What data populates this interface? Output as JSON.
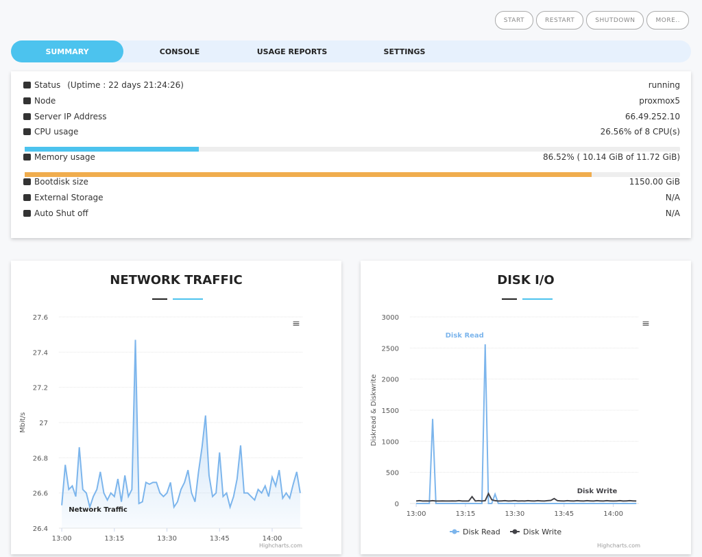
{
  "buttons": [
    "START",
    "RESTART",
    "SHUTDOWN",
    "MORE.."
  ],
  "tabs": [
    "SUMMARY",
    "CONSOLE",
    "USAGE REPORTS",
    "SETTINGS"
  ],
  "status": {
    "rows": [
      {
        "label": "Status",
        "note": "(Uptime : 22 days 21:24:26)",
        "value": "running"
      },
      {
        "label": "Node",
        "value": "proxmox5"
      },
      {
        "label": "Server IP Address",
        "value": "66.49.252.10"
      },
      {
        "label": "CPU usage",
        "value": "26.56% of 8 CPU(s)",
        "percent": 26.56,
        "color": "#4cc3ee"
      },
      {
        "label": "Memory usage",
        "value": "86.52% ( 10.14 GiB of 11.72 GiB)",
        "percent": 86.52,
        "color": "#f0ad4e"
      },
      {
        "label": "Bootdisk size",
        "value": "1150.00 GiB"
      },
      {
        "label": "External Storage",
        "value": "N/A"
      },
      {
        "label": "Auto Shut off",
        "value": "N/A"
      }
    ]
  },
  "chart_data": [
    {
      "type": "area",
      "title": "NETWORK TRAFFIC",
      "y_label": "Mbit/s",
      "credits": "Highcharts.com",
      "grid": true,
      "legend": false,
      "x": [
        0,
        1,
        2,
        3,
        4,
        5,
        6,
        7,
        8,
        9,
        10,
        11,
        12,
        13,
        14,
        15,
        16,
        17,
        18,
        19,
        20,
        21,
        22,
        23,
        24,
        25,
        26,
        27,
        28,
        29,
        30,
        31,
        32,
        33,
        34,
        35,
        36,
        37,
        38,
        39,
        40,
        41,
        42,
        43,
        44,
        45,
        46,
        47,
        48,
        49,
        50,
        51,
        52,
        53,
        54,
        55,
        56,
        57,
        58,
        59,
        60,
        61,
        62,
        63,
        64,
        65,
        66,
        67,
        68
      ],
      "series": [
        {
          "name": "Network Traffic",
          "color": "#7cb5ec",
          "values": [
            26.53,
            26.76,
            26.62,
            26.64,
            26.58,
            26.86,
            26.62,
            26.6,
            26.52,
            26.58,
            26.62,
            26.72,
            26.6,
            26.56,
            26.6,
            26.58,
            26.68,
            26.55,
            26.7,
            26.58,
            26.62,
            27.47,
            26.54,
            26.55,
            26.66,
            26.65,
            26.66,
            26.66,
            26.6,
            26.58,
            26.6,
            26.66,
            26.52,
            26.55,
            26.62,
            26.66,
            26.73,
            26.6,
            26.55,
            26.72,
            26.86,
            27.04,
            26.7,
            26.58,
            26.6,
            26.83,
            26.58,
            26.6,
            26.52,
            26.58,
            26.68,
            26.87,
            26.6,
            26.6,
            26.58,
            26.56,
            26.62,
            26.6,
            26.64,
            26.58,
            26.69,
            26.64,
            26.73,
            26.57,
            26.6,
            26.57,
            26.65,
            26.72,
            26.6
          ]
        }
      ],
      "xlim": [
        -0.8,
        68.6
      ],
      "xticks": [
        {
          "value": 0,
          "label": "13:00"
        },
        {
          "value": 15,
          "label": "13:15"
        },
        {
          "value": 30,
          "label": "13:30"
        },
        {
          "value": 45,
          "label": "13:45"
        },
        {
          "value": 60,
          "label": "14:00"
        }
      ],
      "ylim": [
        26.4,
        27.6
      ],
      "yticks": [
        26.4,
        26.6,
        26.8,
        27,
        27.2,
        27.4,
        27.6
      ]
    },
    {
      "type": "line",
      "title": "DISK I/O",
      "y_label": "Diskread & Diskwrite",
      "credits": "Highcharts.com",
      "grid": true,
      "legend": true,
      "x": [
        0,
        1,
        2,
        3,
        4,
        5,
        6,
        7,
        8,
        9,
        10,
        11,
        12,
        13,
        14,
        15,
        16,
        17,
        18,
        19,
        20,
        21,
        22,
        23,
        24,
        25,
        26,
        27,
        28,
        29,
        30,
        31,
        32,
        33,
        34,
        35,
        36,
        37,
        38,
        39,
        40,
        41,
        42,
        43,
        44,
        45,
        46,
        47,
        48,
        49,
        50,
        51,
        52,
        53,
        54,
        55,
        56,
        57,
        58,
        59,
        60,
        61,
        62,
        63,
        64,
        65,
        66,
        67
      ],
      "series": [
        {
          "name": "Disk Read",
          "color": "#7cb5ec",
          "values": [
            0,
            0,
            0,
            0,
            0,
            1360,
            0,
            0,
            0,
            0,
            0,
            0,
            0,
            0,
            0,
            0,
            0,
            0,
            0,
            0,
            0,
            2560,
            0,
            0,
            150,
            0,
            0,
            0,
            0,
            0,
            0,
            0,
            0,
            0,
            0,
            0,
            0,
            0,
            0,
            0,
            0,
            0,
            0,
            0,
            0,
            0,
            0,
            0,
            0,
            0,
            0,
            0,
            0,
            0,
            0,
            0,
            0,
            0,
            0,
            0,
            0,
            0,
            0,
            0,
            0,
            0,
            0,
            0
          ]
        },
        {
          "name": "Disk Write",
          "color": "#434348",
          "values": [
            40,
            45,
            40,
            42,
            40,
            45,
            40,
            40,
            42,
            40,
            40,
            42,
            40,
            45,
            40,
            40,
            40,
            110,
            40,
            45,
            40,
            45,
            160,
            60,
            45,
            40,
            42,
            45,
            40,
            42,
            45,
            40,
            42,
            40,
            45,
            42,
            40,
            45,
            42,
            40,
            45,
            50,
            80,
            45,
            42,
            40,
            45,
            42,
            40,
            45,
            42,
            40,
            45,
            42,
            40,
            45,
            42,
            40,
            45,
            42,
            40,
            42,
            45,
            40,
            42,
            45,
            42,
            40
          ]
        }
      ],
      "xlim": [
        -1.9,
        67.8
      ],
      "xticks": [
        {
          "value": 0,
          "label": "13:00"
        },
        {
          "value": 15,
          "label": "13:15"
        },
        {
          "value": 30,
          "label": "13:30"
        },
        {
          "value": 45,
          "label": "13:45"
        },
        {
          "value": 60,
          "label": "14:00"
        }
      ],
      "ylim": [
        0,
        3000
      ],
      "yticks": [
        0,
        500,
        1000,
        1500,
        2000,
        2500,
        3000
      ]
    }
  ]
}
